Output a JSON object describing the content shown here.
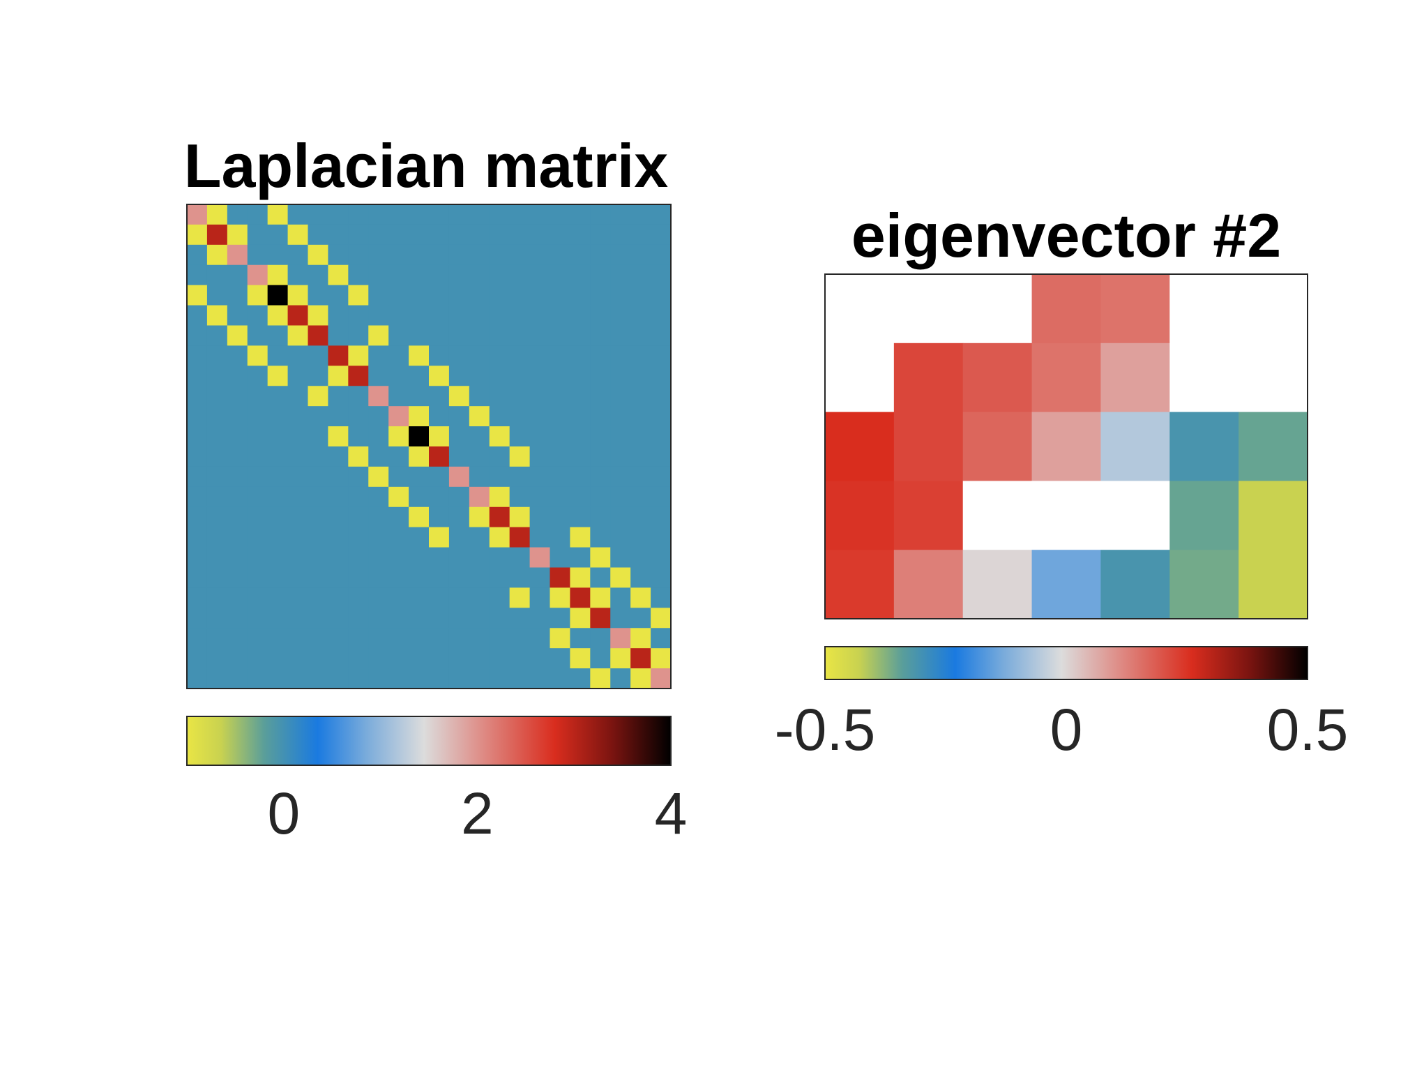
{
  "chart_data": [
    {
      "type": "heatmap",
      "title": "Laplacian matrix",
      "xlabel": "",
      "ylabel": "",
      "rows": 24,
      "cols": 24,
      "clim": [
        -1,
        4
      ],
      "colorbar": {
        "location": "south",
        "ticks": [
          0,
          2,
          4
        ],
        "tick_labels": [
          "0",
          "2",
          "4"
        ]
      },
      "values": [
        [
          2,
          -1,
          0,
          0,
          -1,
          0,
          0,
          0,
          0,
          0,
          0,
          0,
          0,
          0,
          0,
          0,
          0,
          0,
          0,
          0,
          0,
          0,
          0,
          0
        ],
        [
          -1,
          3,
          -1,
          0,
          0,
          -1,
          0,
          0,
          0,
          0,
          0,
          0,
          0,
          0,
          0,
          0,
          0,
          0,
          0,
          0,
          0,
          0,
          0,
          0
        ],
        [
          0,
          -1,
          2,
          0,
          0,
          0,
          -1,
          0,
          0,
          0,
          0,
          0,
          0,
          0,
          0,
          0,
          0,
          0,
          0,
          0,
          0,
          0,
          0,
          0
        ],
        [
          0,
          0,
          0,
          2,
          -1,
          0,
          0,
          -1,
          0,
          0,
          0,
          0,
          0,
          0,
          0,
          0,
          0,
          0,
          0,
          0,
          0,
          0,
          0,
          0
        ],
        [
          -1,
          0,
          0,
          -1,
          4,
          -1,
          0,
          0,
          -1,
          0,
          0,
          0,
          0,
          0,
          0,
          0,
          0,
          0,
          0,
          0,
          0,
          0,
          0,
          0
        ],
        [
          0,
          -1,
          0,
          0,
          -1,
          3,
          -1,
          0,
          0,
          0,
          0,
          0,
          0,
          0,
          0,
          0,
          0,
          0,
          0,
          0,
          0,
          0,
          0,
          0
        ],
        [
          0,
          0,
          -1,
          0,
          0,
          -1,
          3,
          0,
          0,
          -1,
          0,
          0,
          0,
          0,
          0,
          0,
          0,
          0,
          0,
          0,
          0,
          0,
          0,
          0
        ],
        [
          0,
          0,
          0,
          -1,
          0,
          0,
          0,
          3,
          -1,
          0,
          0,
          -1,
          0,
          0,
          0,
          0,
          0,
          0,
          0,
          0,
          0,
          0,
          0,
          0
        ],
        [
          0,
          0,
          0,
          0,
          -1,
          0,
          0,
          -1,
          3,
          0,
          0,
          0,
          -1,
          0,
          0,
          0,
          0,
          0,
          0,
          0,
          0,
          0,
          0,
          0
        ],
        [
          0,
          0,
          0,
          0,
          0,
          0,
          -1,
          0,
          0,
          2,
          0,
          0,
          0,
          -1,
          0,
          0,
          0,
          0,
          0,
          0,
          0,
          0,
          0,
          0
        ],
        [
          0,
          0,
          0,
          0,
          0,
          0,
          0,
          0,
          0,
          0,
          2,
          -1,
          0,
          0,
          -1,
          0,
          0,
          0,
          0,
          0,
          0,
          0,
          0,
          0
        ],
        [
          0,
          0,
          0,
          0,
          0,
          0,
          0,
          -1,
          0,
          0,
          -1,
          4,
          -1,
          0,
          0,
          -1,
          0,
          0,
          0,
          0,
          0,
          0,
          0,
          0
        ],
        [
          0,
          0,
          0,
          0,
          0,
          0,
          0,
          0,
          -1,
          0,
          0,
          -1,
          3,
          0,
          0,
          0,
          -1,
          0,
          0,
          0,
          0,
          0,
          0,
          0
        ],
        [
          0,
          0,
          0,
          0,
          0,
          0,
          0,
          0,
          0,
          -1,
          0,
          0,
          0,
          2,
          0,
          0,
          0,
          0,
          0,
          0,
          0,
          0,
          0,
          0
        ],
        [
          0,
          0,
          0,
          0,
          0,
          0,
          0,
          0,
          0,
          0,
          -1,
          0,
          0,
          0,
          2,
          -1,
          0,
          0,
          0,
          0,
          0,
          0,
          0,
          0
        ],
        [
          0,
          0,
          0,
          0,
          0,
          0,
          0,
          0,
          0,
          0,
          0,
          -1,
          0,
          0,
          -1,
          3,
          -1,
          0,
          0,
          0,
          0,
          0,
          0,
          0
        ],
        [
          0,
          0,
          0,
          0,
          0,
          0,
          0,
          0,
          0,
          0,
          0,
          0,
          -1,
          0,
          0,
          -1,
          3,
          0,
          0,
          -1,
          0,
          0,
          0,
          0
        ],
        [
          0,
          0,
          0,
          0,
          0,
          0,
          0,
          0,
          0,
          0,
          0,
          0,
          0,
          0,
          0,
          0,
          0,
          2,
          0,
          0,
          -1,
          0,
          0,
          0
        ],
        [
          0,
          0,
          0,
          0,
          0,
          0,
          0,
          0,
          0,
          0,
          0,
          0,
          0,
          0,
          0,
          0,
          0,
          0,
          3,
          -1,
          0,
          -1,
          0,
          0
        ],
        [
          0,
          0,
          0,
          0,
          0,
          0,
          0,
          0,
          0,
          0,
          0,
          0,
          0,
          0,
          0,
          0,
          -1,
          0,
          -1,
          3,
          -1,
          0,
          -1,
          0
        ],
        [
          0,
          0,
          0,
          0,
          0,
          0,
          0,
          0,
          0,
          0,
          0,
          0,
          0,
          0,
          0,
          0,
          0,
          0,
          0,
          -1,
          3,
          0,
          0,
          -1
        ],
        [
          0,
          0,
          0,
          0,
          0,
          0,
          0,
          0,
          0,
          0,
          0,
          0,
          0,
          0,
          0,
          0,
          0,
          0,
          -1,
          0,
          0,
          2,
          -1,
          0
        ],
        [
          0,
          0,
          0,
          0,
          0,
          0,
          0,
          0,
          0,
          0,
          0,
          0,
          0,
          0,
          0,
          0,
          0,
          0,
          0,
          -1,
          0,
          -1,
          3,
          -1
        ],
        [
          0,
          0,
          0,
          0,
          0,
          0,
          0,
          0,
          0,
          0,
          0,
          0,
          0,
          0,
          0,
          0,
          0,
          0,
          0,
          0,
          -1,
          0,
          -1,
          2
        ]
      ]
    },
    {
      "type": "heatmap",
      "title": "eigenvector #2",
      "xlabel": "",
      "ylabel": "",
      "rows": 5,
      "cols": 7,
      "clim": [
        -0.5,
        0.5
      ],
      "blank_color": "#ffffff",
      "colorbar": {
        "location": "south",
        "ticks": [
          -0.5,
          0,
          0.5
        ],
        "tick_labels": [
          "-0.5",
          "0",
          "0.5"
        ]
      },
      "values": [
        [
          null,
          null,
          null,
          0.16,
          0.15,
          null,
          null
        ],
        [
          null,
          0.22,
          0.19,
          0.15,
          0.08,
          null,
          null
        ],
        [
          0.26,
          0.22,
          0.17,
          0.08,
          -0.06,
          -0.31,
          -0.35
        ],
        [
          0.25,
          0.23,
          null,
          null,
          null,
          -0.35,
          -0.43
        ],
        [
          0.24,
          0.13,
          0.0,
          -0.14,
          -0.31,
          -0.36,
          -0.43
        ]
      ]
    }
  ],
  "colormap": {
    "stops": [
      [
        0.0,
        "#e9e545"
      ],
      [
        0.07,
        "#c9d250"
      ],
      [
        0.16,
        "#5a9e9a"
      ],
      [
        0.27,
        "#1a7ae0"
      ],
      [
        0.37,
        "#79abdb"
      ],
      [
        0.49,
        "#dcdcdc"
      ],
      [
        0.61,
        "#de8c86"
      ],
      [
        0.76,
        "#d92d1e"
      ],
      [
        0.88,
        "#7a1410"
      ],
      [
        1.0,
        "#000000"
      ]
    ]
  }
}
